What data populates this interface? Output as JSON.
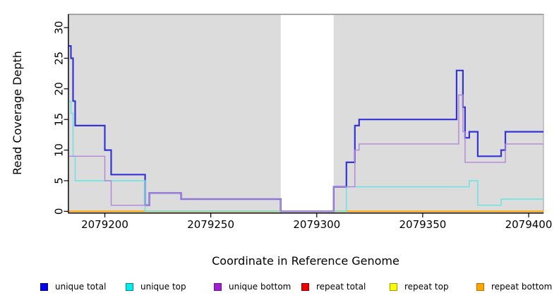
{
  "chart_data": {
    "type": "line",
    "subtype": "step-after-coverage",
    "title": "",
    "xlabel": "Coordinate in Reference Genome",
    "ylabel": "Read Coverage Depth",
    "xlim": [
      2079183,
      2079407
    ],
    "ylim": [
      -0.25,
      32.2
    ],
    "x_ticks": [
      2079200,
      2079250,
      2079300,
      2079350,
      2079400
    ],
    "y_ticks": [
      0,
      5,
      10,
      15,
      20,
      25,
      30
    ],
    "grid": "off",
    "legend_position": "bottom",
    "plot_bg": "#dcdcdc",
    "plot_border": "#9c9c9c",
    "axis_color": "#000000",
    "uncovered_region": {
      "from": 2079283,
      "to": 2079308,
      "color": "#ffffff"
    },
    "draw_order": [
      3,
      4,
      5,
      0,
      1,
      2
    ],
    "series": [
      {
        "name": "unique total",
        "color": "#0000ee",
        "border": "#000088",
        "line_color": "#3434d6",
        "line_width": 2.2,
        "points": [
          [
            2079183,
            27
          ],
          [
            2079184,
            25
          ],
          [
            2079185,
            18
          ],
          [
            2079186,
            14
          ],
          [
            2079200,
            10
          ],
          [
            2079203,
            6
          ],
          [
            2079219,
            1
          ],
          [
            2079221,
            3
          ],
          [
            2079236,
            2
          ],
          [
            2079283,
            0
          ],
          [
            2079308,
            4
          ],
          [
            2079314,
            8
          ],
          [
            2079318,
            14
          ],
          [
            2079320,
            15
          ],
          [
            2079366,
            23
          ],
          [
            2079369,
            17
          ],
          [
            2079370,
            12
          ],
          [
            2079372,
            13
          ],
          [
            2079376,
            9
          ],
          [
            2079387,
            10
          ],
          [
            2079389,
            13
          ],
          [
            2079407,
            13
          ]
        ]
      },
      {
        "name": "unique top",
        "color": "#00eeee",
        "border": "#008888",
        "line_color": "#63e3e3",
        "line_width": 1.4,
        "points": [
          [
            2079183,
            18
          ],
          [
            2079184,
            16
          ],
          [
            2079185,
            9
          ],
          [
            2079186,
            5
          ],
          [
            2079219,
            0
          ],
          [
            2079314,
            4
          ],
          [
            2079372,
            5
          ],
          [
            2079376,
            1
          ],
          [
            2079387,
            2
          ],
          [
            2079407,
            2
          ]
        ]
      },
      {
        "name": "unique bottom",
        "color": "#a21fd1",
        "border": "#6a1390",
        "line_color": "#b285d8",
        "line_width": 1.4,
        "points": [
          [
            2079183,
            9
          ],
          [
            2079200,
            5
          ],
          [
            2079203,
            1
          ],
          [
            2079221,
            3
          ],
          [
            2079236,
            2
          ],
          [
            2079283,
            0
          ],
          [
            2079308,
            4
          ],
          [
            2079318,
            10
          ],
          [
            2079320,
            11
          ],
          [
            2079367,
            19
          ],
          [
            2079369,
            13
          ],
          [
            2079370,
            8
          ],
          [
            2079389,
            11
          ],
          [
            2079407,
            11
          ]
        ]
      },
      {
        "name": "repeat total",
        "color": "#ee0000",
        "border": "#880000",
        "line_color": "#ee2222",
        "line_width": 1.4,
        "points": [
          [
            2079183,
            0
          ],
          [
            2079407,
            0
          ]
        ]
      },
      {
        "name": "repeat top",
        "color": "#ffff00",
        "border": "#999900",
        "line_color": "#ffff44",
        "line_width": 1.4,
        "points": [
          [
            2079183,
            0
          ],
          [
            2079407,
            0
          ]
        ]
      },
      {
        "name": "repeat bottom",
        "color": "#ffa500",
        "border": "#b57400",
        "line_color": "#ffa500",
        "line_width": 2,
        "points": [
          [
            2079183,
            0
          ],
          [
            2079407,
            0
          ]
        ]
      }
    ]
  }
}
